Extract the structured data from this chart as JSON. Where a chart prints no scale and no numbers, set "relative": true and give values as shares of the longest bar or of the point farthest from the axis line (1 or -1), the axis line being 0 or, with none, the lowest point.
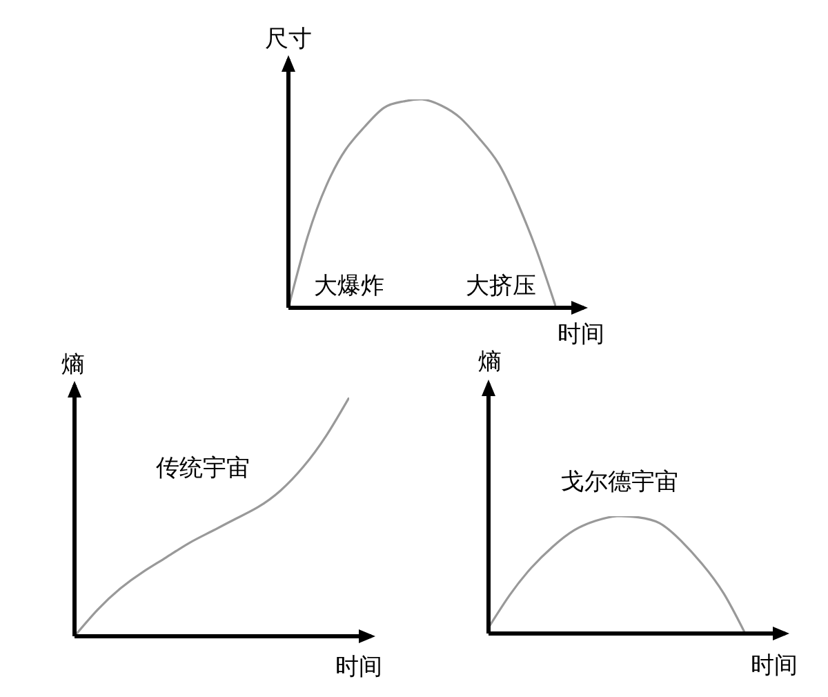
{
  "chart_data": [
    {
      "type": "line",
      "relative": true,
      "ylabel": "尺寸",
      "xlabel": "时间",
      "marker": "none",
      "annotations": [
        "大爆炸",
        "大挤压"
      ],
      "categories": [
        null,
        null,
        null,
        null,
        null,
        null,
        null,
        null,
        null,
        null,
        null,
        null,
        null,
        null,
        null
      ],
      "series": [
        {
          "color": "#999999",
          "values": [
            0,
            0.34,
            0.59,
            0.76,
            0.87,
            0.96,
            0.99,
            1,
            0.97,
            0.91,
            0.81,
            0.69,
            0.5,
            0.27,
            0
          ]
        }
      ]
    },
    {
      "type": "line",
      "relative": true,
      "ylabel": "熵",
      "xlabel": "时间",
      "marker": "none",
      "categories": [
        null,
        null,
        null,
        null,
        null,
        null,
        null,
        null,
        null,
        null,
        null,
        null,
        null
      ],
      "series": [
        {
          "name": "传统宇宙",
          "color": "#999999",
          "values": [
            0,
            0.11,
            0.2,
            0.27,
            0.33,
            0.39,
            0.44,
            0.49,
            0.54,
            0.61,
            0.71,
            0.84,
            1
          ]
        }
      ]
    },
    {
      "type": "line",
      "relative": true,
      "ylabel": "熵",
      "xlabel": "时间",
      "marker": "none",
      "categories": [
        null,
        null,
        null,
        null,
        null,
        null,
        null,
        null,
        null,
        null,
        null,
        null,
        null
      ],
      "series": [
        {
          "name": "戈尔德宇宙",
          "color": "#999999",
          "values": [
            0.05,
            0.33,
            0.56,
            0.74,
            0.88,
            0.96,
            1,
            0.99,
            0.94,
            0.79,
            0.59,
            0.34,
            0
          ]
        }
      ]
    }
  ]
}
